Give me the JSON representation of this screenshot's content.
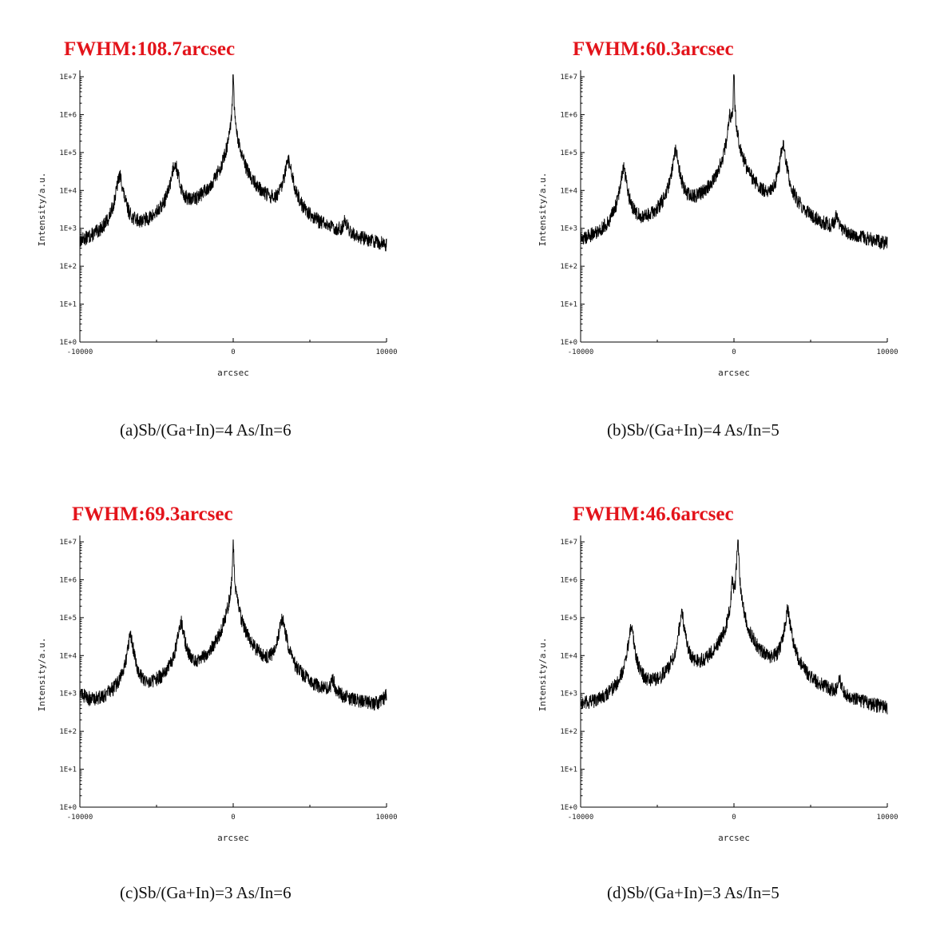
{
  "theme": {
    "fwhm_color": "#e3141b",
    "line_color": "#000000"
  },
  "panels": [
    {
      "fwhm": "FWHM:108.7arcsec",
      "caption": "(a)Sb/(Ga+In)=4 As/In=6"
    },
    {
      "fwhm": "FWHM:60.3arcsec",
      "caption": "(b)Sb/(Ga+In)=4 As/In=5"
    },
    {
      "fwhm": "FWHM:69.3arcsec",
      "caption": "(c)Sb/(Ga+In)=3 As/In=6"
    },
    {
      "fwhm": "FWHM:46.6arcsec",
      "caption": "(d)Sb/(Ga+In)=3 As/In=5"
    }
  ],
  "chart_data": [
    {
      "type": "line",
      "title": "FWHM:108.7arcsec",
      "xlabel": "arcsec",
      "ylabel": "Intensity/a.u.",
      "xlim": [
        -10000,
        10000
      ],
      "ylim": [
        1,
        10000000
      ],
      "yscale": "log",
      "xticks": [
        "-10000",
        "0",
        "10000"
      ],
      "yticks": [
        "1E+0",
        "1E+1",
        "1E+2",
        "1E+3",
        "1E+4",
        "1E+5",
        "1E+6",
        "1E+7"
      ],
      "grid": false,
      "baseline": 2.5,
      "noise": 0.55,
      "peaks": [
        {
          "x": -7400,
          "height": 23000.0,
          "width": 180
        },
        {
          "x": -3800,
          "height": 50000.0,
          "width": 190
        },
        {
          "x": -1900,
          "height": 350,
          "width": 700
        },
        {
          "x": 0,
          "height": 17000000.0,
          "width": 20
        },
        {
          "x": 0,
          "height": 350000.0,
          "width": 260
        },
        {
          "x": 1500,
          "height": 450,
          "width": 900
        },
        {
          "x": 3600,
          "height": 55000.0,
          "width": 200
        },
        {
          "x": 7300,
          "height": 900,
          "width": 140
        }
      ]
    },
    {
      "type": "line",
      "title": "FWHM:60.3arcsec",
      "xlabel": "arcsec",
      "ylabel": "Intensity/a.u.",
      "xlim": [
        -10000,
        10000
      ],
      "ylim": [
        1,
        10000000
      ],
      "yscale": "log",
      "xticks": [
        "-10000",
        "0",
        "10000"
      ],
      "yticks": [
        "1E+0",
        "1E+1",
        "1E+2",
        "1E+3",
        "1E+4",
        "1E+5",
        "1E+6",
        "1E+7"
      ],
      "grid": false,
      "baseline": 3.0,
      "noise": 0.55,
      "peaks": [
        {
          "x": -7200,
          "height": 40000.0,
          "width": 150
        },
        {
          "x": -3800,
          "height": 110000.0,
          "width": 160
        },
        {
          "x": -2400,
          "height": 400,
          "width": 500
        },
        {
          "x": -250,
          "height": 800000.0,
          "width": 120
        },
        {
          "x": 0,
          "height": 18000000.0,
          "width": 20
        },
        {
          "x": 100,
          "height": 180000.0,
          "width": 250
        },
        {
          "x": 1200,
          "height": 500,
          "width": 600
        },
        {
          "x": 2500,
          "height": 600,
          "width": 500
        },
        {
          "x": 3200,
          "height": 150000.0,
          "width": 150
        },
        {
          "x": 6700,
          "height": 1500,
          "width": 100
        }
      ]
    },
    {
      "type": "line",
      "title": "FWHM:69.3arcsec",
      "xlabel": "arcsec",
      "ylabel": "Intensity/a.u.",
      "xlim": [
        -10000,
        10000
      ],
      "ylim": [
        1,
        10000000
      ],
      "yscale": "log",
      "xticks": [
        "-10000",
        "0",
        "10000"
      ],
      "yticks": [
        "1E+0",
        "1E+1",
        "1E+2",
        "1E+3",
        "1E+4",
        "1E+5",
        "1E+6",
        "1E+7"
      ],
      "grid": false,
      "baseline": 2.6,
      "noise": 0.55,
      "peaks": [
        {
          "x": -10500,
          "height": 4000.0,
          "width": 250
        },
        {
          "x": -6700,
          "height": 30000.0,
          "width": 170
        },
        {
          "x": -3400,
          "height": 70000.0,
          "width": 170
        },
        {
          "x": -1800,
          "height": 350,
          "width": 600
        },
        {
          "x": 0,
          "height": 16000000.0,
          "width": 20
        },
        {
          "x": 0,
          "height": 400000.0,
          "width": 250
        },
        {
          "x": 1500,
          "height": 350,
          "width": 800
        },
        {
          "x": 3200,
          "height": 90000.0,
          "width": 180
        },
        {
          "x": 6500,
          "height": 1200.0,
          "width": 130
        },
        {
          "x": 10300,
          "height": 1500.0,
          "width": 250
        }
      ]
    },
    {
      "type": "line",
      "title": "FWHM:46.6arcsec",
      "xlabel": "arcsec",
      "ylabel": "Intensity/a.u.",
      "xlim": [
        -10000,
        10000
      ],
      "ylim": [
        1,
        10000000
      ],
      "yscale": "log",
      "xticks": [
        "-10000",
        "0",
        "10000"
      ],
      "yticks": [
        "1E+0",
        "1E+1",
        "1E+2",
        "1E+3",
        "1E+4",
        "1E+5",
        "1E+6",
        "1E+7"
      ],
      "grid": false,
      "baseline": 2.8,
      "noise": 0.55,
      "peaks": [
        {
          "x": -10300,
          "height": 200,
          "width": 300
        },
        {
          "x": -6700,
          "height": 50000.0,
          "width": 150
        },
        {
          "x": -3400,
          "height": 110000.0,
          "width": 150
        },
        {
          "x": -2200,
          "height": 500,
          "width": 600
        },
        {
          "x": -800,
          "height": 1200,
          "width": 700
        },
        {
          "x": -100,
          "height": 800000.0,
          "width": 60
        },
        {
          "x": 250,
          "height": 13000000.0,
          "width": 40
        },
        {
          "x": 200,
          "height": 80000.0,
          "width": 250
        },
        {
          "x": 1800,
          "height": 500,
          "width": 700
        },
        {
          "x": 3500,
          "height": 150000.0,
          "width": 150
        },
        {
          "x": 6900,
          "height": 1200,
          "width": 100
        }
      ]
    }
  ]
}
